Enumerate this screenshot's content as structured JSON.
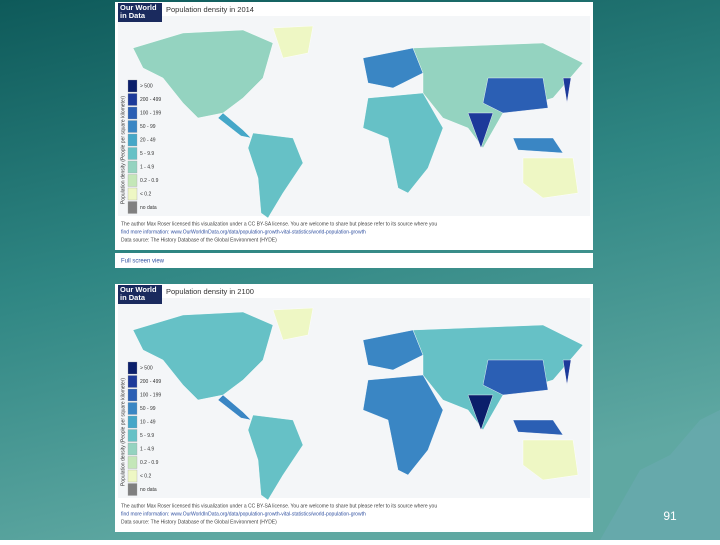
{
  "slide": {
    "page_number": "91",
    "full_screen_link": "Full screen view",
    "maps": [
      {
        "logo": [
          "Our World",
          "in Data"
        ],
        "title": "Population density in 2014",
        "legend_title": "Population density (People per square kilometer)",
        "legend": [
          "> 500",
          "200 - 499",
          "100 - 199",
          "50 - 99",
          "20 - 49",
          "5 - 9.9",
          "1 - 4.9",
          "0.2 - 0.9",
          "< 0.2",
          "no data"
        ],
        "credit": [
          "The author Max Roser licensed this visualization under a CC BY-SA license. You are welcome to share but please refer to its source where you",
          "find more information: www.OurWorldInData.org/data/population-growth-vital-statistics/world-population-growth",
          "Data source: The History Database of the Global Environment (HYDE)"
        ]
      },
      {
        "logo": [
          "Our World",
          "in Data"
        ],
        "title": "Population density in 2100",
        "legend_title": "Population density (People per square kilometer)",
        "legend": [
          "> 500",
          "200 - 499",
          "100 - 199",
          "50 - 99",
          "10 - 49",
          "5 - 9.9",
          "1 - 4.9",
          "0.2 - 0.9",
          "< 0.2",
          "no data"
        ],
        "credit": [
          "The author Max Roser licensed this visualization under a CC BY-SA license. You are welcome to share but please refer to its source where you",
          "find more information: www.OurWorldInData.org/data/population-growth-vital-statistics/world-population-growth",
          "Data source: The History Database of the Global Environment (HYDE)"
        ]
      }
    ]
  }
}
